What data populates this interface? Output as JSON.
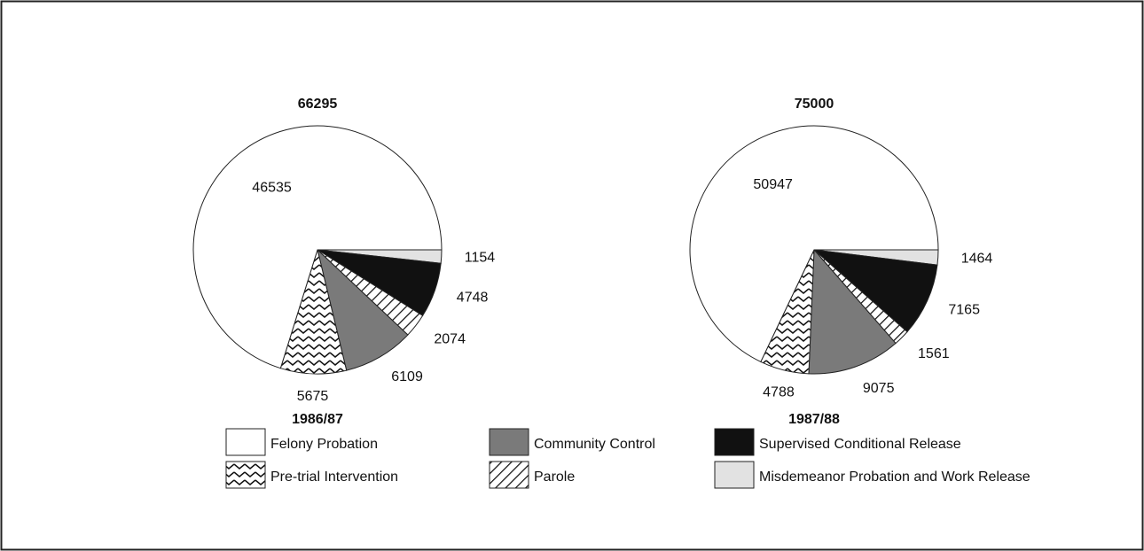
{
  "chart_data": [
    {
      "type": "pie",
      "title": "66295",
      "subtitle": "1986/87",
      "values": [
        1154,
        4748,
        2074,
        6109,
        5675,
        46535
      ]
    },
    {
      "type": "pie",
      "title": "75000",
      "subtitle": "1987/88",
      "values": [
        1464,
        7165,
        1561,
        9075,
        4788,
        50947
      ]
    }
  ],
  "legend": {
    "entries": [
      {
        "name": "Misdemeanor Probation and Work Release",
        "color": "#e2e2e2"
      },
      {
        "name": "Supervised Conditional Release",
        "color": "#111111"
      },
      {
        "name": "Parole",
        "color": "#ffffff",
        "pattern": "hatch"
      },
      {
        "name": "Community Control",
        "color": "#7a7a7a"
      },
      {
        "name": "Pre-trial Intervention",
        "color": "#ffffff",
        "pattern": "zigzag"
      },
      {
        "name": "Felony Probation",
        "color": "#ffffff"
      }
    ]
  }
}
